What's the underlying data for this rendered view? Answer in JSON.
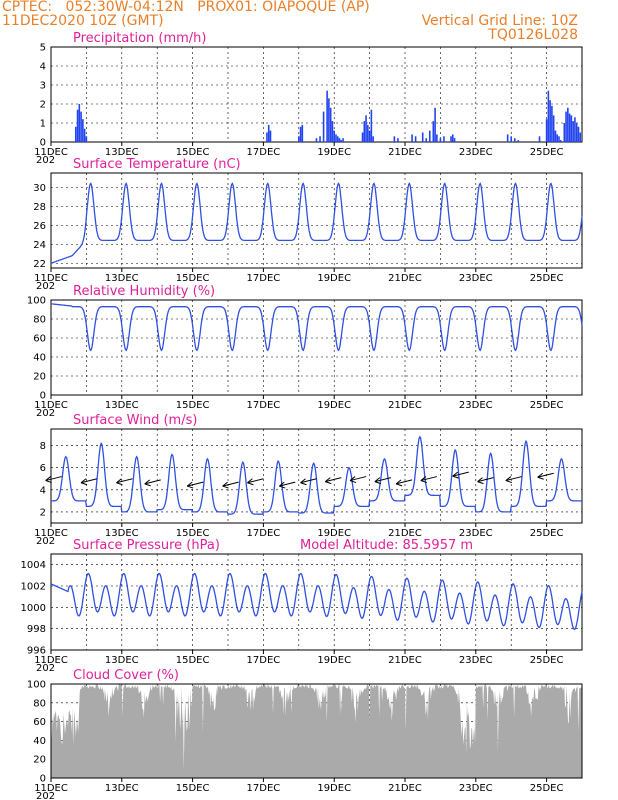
{
  "header": {
    "line1": "CPTEC:   052:30W-04:12N   PROX01: OIAPOQUE (AP)",
    "line2": "11DEC2020 10Z (GMT)",
    "grid_note": "Vertical Grid Line: 10Z",
    "code": "TQ0126L028"
  },
  "x_axis": {
    "labels": [
      "11DEC",
      "13DEC",
      "15DEC",
      "17DEC",
      "19DEC",
      "21DEC",
      "23DEC",
      "25DEC"
    ],
    "year_stub": "202",
    "range_days": [
      0,
      15
    ]
  },
  "colors": {
    "line": "#3050e0",
    "bar": "#2244ee",
    "cloud": "#aaaaaa",
    "header": "#e8802a",
    "title": "#e0209a"
  },
  "chart_data": [
    {
      "type": "bar",
      "title": "Precipitation (mm/h)",
      "ylim": [
        0,
        5
      ],
      "yticks": [
        0,
        1,
        2,
        3,
        4,
        5
      ],
      "x_unit": "days since 11DEC 10Z",
      "x": [
        0.7,
        0.75,
        0.8,
        0.85,
        0.9,
        0.95,
        1.0,
        6.1,
        6.15,
        6.2,
        7.0,
        7.05,
        7.1,
        7.5,
        7.6,
        7.7,
        7.8,
        7.85,
        7.9,
        7.95,
        8.0,
        8.05,
        8.1,
        8.15,
        8.2,
        8.25,
        8.8,
        8.85,
        8.9,
        8.95,
        9.0,
        9.05,
        9.1,
        9.7,
        9.8,
        10.2,
        10.3,
        10.5,
        10.6,
        10.7,
        10.8,
        10.85,
        10.9,
        11.0,
        11.1,
        11.3,
        11.35,
        11.4,
        12.9,
        13.0,
        13.1,
        13.2,
        13.8,
        14.0,
        14.05,
        14.1,
        14.15,
        14.2,
        14.25,
        14.3,
        14.35,
        14.4,
        14.5,
        14.55,
        14.6,
        14.65,
        14.7,
        14.75,
        14.8,
        14.85,
        14.9,
        14.95
      ],
      "values": [
        0.8,
        1.7,
        2.0,
        1.6,
        1.2,
        0.7,
        0.3,
        0.5,
        0.9,
        0.6,
        0.3,
        0.8,
        0.9,
        0.2,
        0.3,
        1.6,
        2.7,
        2.3,
        1.8,
        1.1,
        0.6,
        0.4,
        0.3,
        0.2,
        0.1,
        0.2,
        0.5,
        1.1,
        1.4,
        0.9,
        0.6,
        1.7,
        0.3,
        0.3,
        0.2,
        0.4,
        0.3,
        0.5,
        0.2,
        0.6,
        1.1,
        1.8,
        0.4,
        0.2,
        0.3,
        0.3,
        0.4,
        0.2,
        0.4,
        0.3,
        0.2,
        0.1,
        0.3,
        1.2,
        2.7,
        2.2,
        1.9,
        1.4,
        0.6,
        0.4,
        0.3,
        0.1,
        1.0,
        1.6,
        1.8,
        1.5,
        1.4,
        1.1,
        1.3,
        1.0,
        0.8,
        0.5
      ]
    },
    {
      "type": "line",
      "title": "Surface Temperature (nC)",
      "ylim": [
        21.5,
        31.5
      ],
      "yticks": [
        22,
        24,
        26,
        28,
        30
      ],
      "base": 24.4,
      "amplitude": 6.0,
      "start": 22.0
    },
    {
      "type": "line",
      "title": "Relative Humidity (%)",
      "ylim": [
        0,
        100
      ],
      "yticks": [
        0,
        20,
        40,
        60,
        80,
        100
      ],
      "base": 93,
      "amplitude": 46
    },
    {
      "type": "line",
      "title": "Surface Wind (m/s)",
      "ylim": [
        1,
        9.5
      ],
      "yticks": [
        2,
        4,
        6,
        8
      ],
      "daily_max": [
        7.0,
        8.2,
        7.0,
        7.2,
        6.8,
        6.5,
        6.6,
        6.4,
        6.0,
        6.8,
        8.8,
        7.6,
        7.3,
        8.4,
        6.8
      ],
      "daily_min": [
        3.0,
        2.5,
        2.0,
        2.2,
        2.0,
        1.8,
        2.0,
        1.9,
        2.5,
        3.0,
        3.5,
        2.5,
        2.0,
        2.5,
        3.0
      ],
      "vectors_x": [
        0.3,
        1.3,
        2.3,
        3.1,
        4.3,
        5.3,
        6.0,
        6.9,
        7.5,
        8.2,
        8.9,
        9.6,
        10.2,
        10.9,
        11.8,
        12.5,
        13.3,
        14.2
      ],
      "vectors_y": [
        5.2,
        5.0,
        5.0,
        4.9,
        4.7,
        4.7,
        5.0,
        4.7,
        5.0,
        5.1,
        5.2,
        5.1,
        4.9,
        5.2,
        5.6,
        5.1,
        5.2,
        5.5
      ]
    },
    {
      "type": "line",
      "title": "Surface Pressure (hPa)",
      "subtitle": "Model Altitude: 85.5957  m",
      "ylim": [
        996,
        1005
      ],
      "yticks": [
        996,
        998,
        1000,
        1002,
        1004
      ]
    },
    {
      "type": "area",
      "title": "Cloud Cover (%)",
      "ylim": [
        0,
        100
      ],
      "yticks": [
        0,
        20,
        40,
        60,
        80,
        100
      ]
    }
  ]
}
